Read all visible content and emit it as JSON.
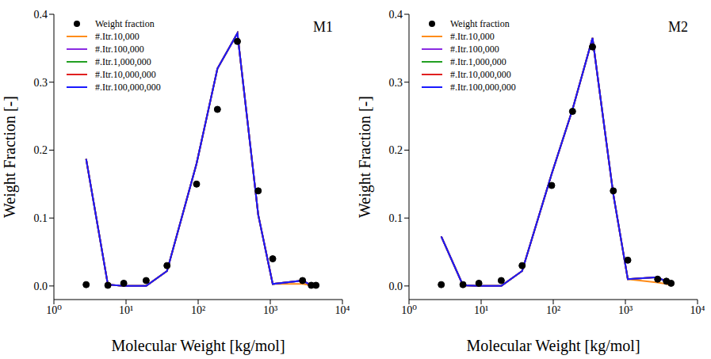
{
  "chart_data": [
    {
      "type": "line",
      "title": "M1",
      "xlabel": "Molecular Weight [kg/mol]",
      "ylabel": "Weight Fraction [-]",
      "log": "x",
      "grid": false,
      "legend": "upper left",
      "xlim": [
        1,
        10000
      ],
      "ylim": [
        -0.02,
        0.4
      ],
      "xticks": [
        {
          "value": 1,
          "label": "10⁰"
        },
        {
          "value": 10,
          "label": "10¹"
        },
        {
          "value": 100,
          "label": "10²"
        },
        {
          "value": 1000,
          "label": "10³"
        },
        {
          "value": 10000,
          "label": "10⁴"
        }
      ],
      "yticks": [
        {
          "value": 0,
          "label": "0.0"
        },
        0.1,
        0.2,
        0.3,
        0.4
      ],
      "x": [
        2.8,
        5.6,
        9.3,
        19,
        37,
        95,
        185,
        350,
        680,
        1080,
        2800,
        3700,
        4300
      ],
      "series": [
        {
          "name": "Weight fraction",
          "type": "scatter",
          "marker": "circle",
          "color": "#000000",
          "values": [
            0.002,
            0.001,
            0.004,
            0.008,
            0.03,
            0.15,
            0.26,
            0.36,
            0.14,
            0.04,
            0.008,
            0.001,
            0.001
          ]
        },
        {
          "name": "#.Itr.10,000",
          "type": "line",
          "line_style": "solid",
          "color": "#ff8c1a",
          "values": [
            0.187,
            0.002,
            0.0,
            0.0,
            0.022,
            0.18,
            0.32,
            0.372,
            0.105,
            0.003,
            0.003,
            0.001,
            0.001
          ]
        },
        {
          "name": "#.Itr.100,000",
          "type": "line",
          "line_style": "solid",
          "color": "#8a2be2",
          "values": [
            0.187,
            0.002,
            0.0,
            0.0,
            0.022,
            0.18,
            0.32,
            0.372,
            0.105,
            0.003,
            0.008,
            0.001,
            0.001
          ]
        },
        {
          "name": "#.Itr.1,000,000",
          "type": "line",
          "line_style": "solid",
          "color": "#22a022",
          "values": [
            0.187,
            0.002,
            0.0,
            0.0,
            0.022,
            0.18,
            0.32,
            0.372,
            0.105,
            0.003,
            0.008,
            0.001,
            0.001
          ]
        },
        {
          "name": "#.Itr.10,000,000",
          "type": "line",
          "line_style": "solid",
          "color": "#e02020",
          "values": [
            0.187,
            0.002,
            0.0,
            0.0,
            0.022,
            0.18,
            0.32,
            0.372,
            0.105,
            0.003,
            0.008,
            0.001,
            0.001
          ]
        },
        {
          "name": "#.Itr.100,000,000",
          "type": "line",
          "line_style": "solid",
          "color": "#1a1aff",
          "values": [
            0.187,
            0.002,
            0.0,
            0.0,
            0.022,
            0.18,
            0.32,
            0.372,
            0.105,
            0.003,
            0.008,
            0.001,
            0.001
          ]
        }
      ]
    },
    {
      "type": "line",
      "title": "M2",
      "xlabel": "Molecular Weight [kg/mol]",
      "ylabel": "Weight Fraction [-]",
      "log": "x",
      "grid": false,
      "legend": "upper left",
      "xlim": [
        1,
        10000
      ],
      "ylim": [
        -0.02,
        0.4
      ],
      "xticks": [
        {
          "value": 1,
          "label": "10⁰"
        },
        {
          "value": 10,
          "label": "10¹"
        },
        {
          "value": 100,
          "label": "10²"
        },
        {
          "value": 1000,
          "label": "10³"
        },
        {
          "value": 10000,
          "label": "10⁴"
        }
      ],
      "yticks": [
        {
          "value": 0,
          "label": "0.0"
        },
        0.1,
        0.2,
        0.3,
        0.4
      ],
      "x": [
        2.8,
        5.6,
        9.3,
        19,
        37,
        95,
        185,
        350,
        680,
        1080,
        2800,
        3700,
        4300
      ],
      "series": [
        {
          "name": "Weight fraction",
          "type": "scatter",
          "marker": "circle",
          "color": "#000000",
          "values": [
            0.002,
            0.002,
            0.004,
            0.008,
            0.03,
            0.148,
            0.257,
            0.352,
            0.14,
            0.038,
            0.01,
            0.007,
            0.004
          ]
        },
        {
          "name": "#.Itr.10,000",
          "type": "line",
          "line_style": "solid",
          "color": "#ff8c1a",
          "values": [
            0.073,
            0.001,
            0.0,
            0.0,
            0.022,
            0.165,
            0.26,
            0.365,
            0.135,
            0.01,
            0.005,
            0.003,
            0.001
          ]
        },
        {
          "name": "#.Itr.100,000",
          "type": "line",
          "line_style": "solid",
          "color": "#8a2be2",
          "values": [
            0.073,
            0.001,
            0.0,
            0.0,
            0.022,
            0.165,
            0.26,
            0.365,
            0.135,
            0.01,
            0.013,
            0.006,
            0.001
          ]
        },
        {
          "name": "#.Itr.1,000,000",
          "type": "line",
          "line_style": "solid",
          "color": "#22a022",
          "values": [
            0.073,
            0.001,
            0.0,
            0.0,
            0.022,
            0.165,
            0.26,
            0.365,
            0.135,
            0.01,
            0.013,
            0.006,
            0.001
          ]
        },
        {
          "name": "#.Itr.10,000,000",
          "type": "line",
          "line_style": "solid",
          "color": "#e02020",
          "values": [
            0.073,
            0.001,
            0.0,
            0.0,
            0.022,
            0.165,
            0.26,
            0.365,
            0.135,
            0.01,
            0.013,
            0.006,
            0.001
          ]
        },
        {
          "name": "#.Itr.100,000,000",
          "type": "line",
          "line_style": "solid",
          "color": "#1a1aff",
          "values": [
            0.073,
            0.001,
            0.0,
            0.0,
            0.022,
            0.165,
            0.26,
            0.365,
            0.135,
            0.01,
            0.013,
            0.006,
            0.001
          ]
        }
      ]
    }
  ]
}
